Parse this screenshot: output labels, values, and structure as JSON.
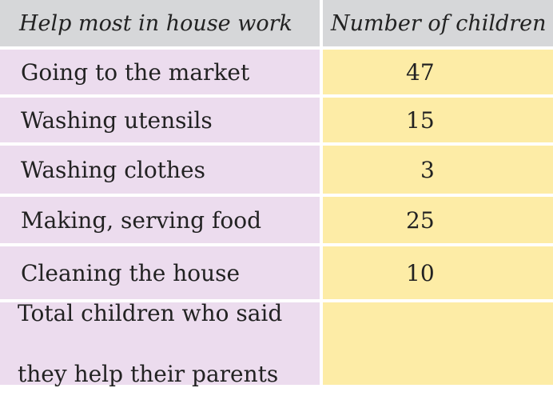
{
  "table": {
    "headers": [
      "Help most in house work",
      "Number of children"
    ],
    "rows": [
      {
        "activity": "Going to the market",
        "count": "47"
      },
      {
        "activity": "Washing utensils",
        "count": "15"
      },
      {
        "activity": "Washing clothes",
        "count": "3"
      },
      {
        "activity": "Making, serving food",
        "count": "25"
      },
      {
        "activity": "Cleaning the house",
        "count": "10"
      }
    ],
    "total": {
      "label_line1": "Total children who said",
      "label_line2": "they help their parents",
      "count": ""
    }
  },
  "colors": {
    "header_bg": "#d6d7d9",
    "label_bg": "#ecdcee",
    "value_bg": "#fdeca6"
  }
}
